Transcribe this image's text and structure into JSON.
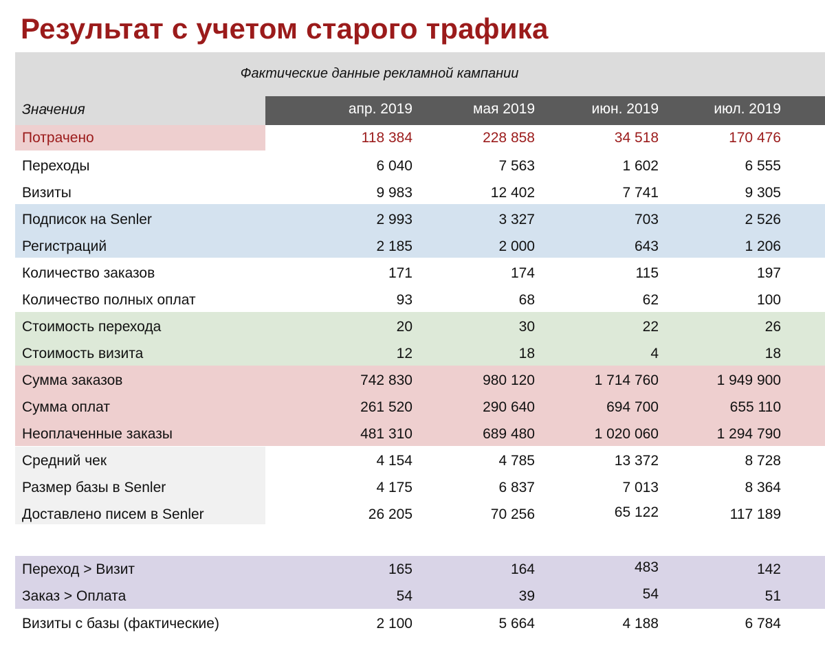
{
  "title": "Результат с учетом старого трафика",
  "caption": "Фактические данные рекламной кампании",
  "values_label": "Значения",
  "columns": [
    "апр. 2019",
    "мая 2019",
    "июн. 2019",
    "июл. 2019"
  ],
  "colors": {
    "title": "#9b1b1b",
    "header_band": "#dcdcdc",
    "column_header_bar": "#5b5b5b",
    "red_band": "#eecfcf",
    "blue_band": "#d4e2ef",
    "green_band": "#dde9d8",
    "grey_band": "#f1f1f1",
    "purple_band": "#d9d4e7"
  },
  "rows": [
    {
      "label": "Потрачено",
      "values": [
        "118 384",
        "228 858",
        "34 518",
        "170 476"
      ]
    },
    {
      "label": "Переходы",
      "values": [
        "6 040",
        "7 563",
        "1 602",
        "6 555"
      ]
    },
    {
      "label": "Визиты",
      "values": [
        "9 983",
        "12 402",
        "7 741",
        "9 305"
      ]
    },
    {
      "label": "Подписок на Senler",
      "values": [
        "2 993",
        "3 327",
        "703",
        "2 526"
      ]
    },
    {
      "label": "Регистраций",
      "values": [
        "2 185",
        "2 000",
        "643",
        "1 206"
      ]
    },
    {
      "label": "Количество заказов",
      "values": [
        "171",
        "174",
        "115",
        "197"
      ]
    },
    {
      "label": "Количество полных оплат",
      "values": [
        "93",
        "68",
        "62",
        "100"
      ]
    },
    {
      "label": "Стоимость перехода",
      "values": [
        "20",
        "30",
        "22",
        "26"
      ]
    },
    {
      "label": "Стоимость визита",
      "values": [
        "12",
        "18",
        "4",
        "18"
      ]
    },
    {
      "label": "Сумма заказов",
      "values": [
        "742 830",
        "980 120",
        "1 714 760",
        "1 949 900"
      ]
    },
    {
      "label": "Сумма оплат",
      "values": [
        "261 520",
        "290 640",
        "694 700",
        "655 110"
      ]
    },
    {
      "label": "Неоплаченные заказы",
      "values": [
        "481 310",
        "689 480",
        "1 020 060",
        "1 294 790"
      ]
    },
    {
      "label": "Средний чек",
      "values": [
        "4 154",
        "4 785",
        "13 372",
        "8 728"
      ]
    },
    {
      "label": "Размер базы в Senler",
      "values": [
        "4 175",
        "6 837",
        "7 013",
        "8 364"
      ]
    },
    {
      "label": "Доставлено писем в Senler",
      "values": [
        "26 205",
        "70 256",
        "65 122",
        "117 189"
      ]
    },
    {
      "label": "Переход > Визит",
      "values": [
        "165",
        "164",
        "483",
        "142"
      ]
    },
    {
      "label": "Заказ > Оплата",
      "values": [
        "54",
        "39",
        "54",
        "51"
      ]
    },
    {
      "label": "Визиты с базы (фактические)",
      "values": [
        "2 100",
        "5 664",
        "4 188",
        "6 784"
      ]
    }
  ]
}
